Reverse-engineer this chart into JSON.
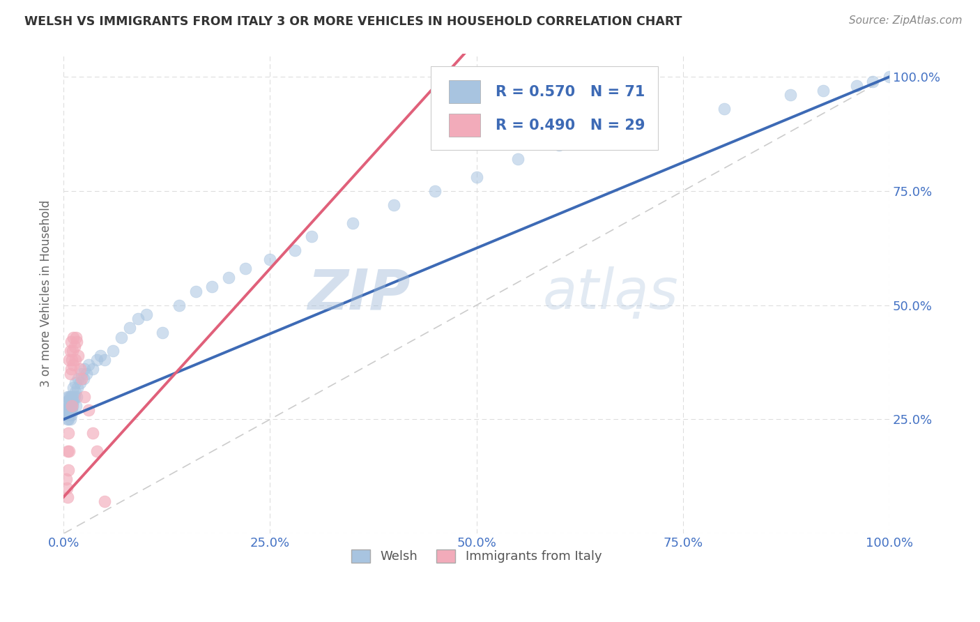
{
  "title": "WELSH VS IMMIGRANTS FROM ITALY 3 OR MORE VEHICLES IN HOUSEHOLD CORRELATION CHART",
  "source": "Source: ZipAtlas.com",
  "ylabel": "3 or more Vehicles in Household",
  "xlim": [
    0.0,
    1.0
  ],
  "ylim": [
    0.0,
    1.05
  ],
  "xticklabels": [
    "0.0%",
    "25.0%",
    "50.0%",
    "75.0%",
    "100.0%"
  ],
  "yticklabels": [
    "",
    "25.0%",
    "50.0%",
    "75.0%",
    "100.0%"
  ],
  "welsh_color": "#A8C4E0",
  "italy_color": "#F2ABBA",
  "welsh_line_color": "#3D6AB5",
  "italy_line_color": "#E0607A",
  "ref_line_color": "#CCCCCC",
  "welsh_R": 0.57,
  "welsh_N": 71,
  "italy_R": 0.49,
  "italy_N": 29,
  "watermark": "ZIPAtlas",
  "watermark_color": "#C8D8EC",
  "legend_label_welsh": "Welsh",
  "legend_label_italy": "Immigrants from Italy",
  "welsh_x": [
    0.003,
    0.004,
    0.004,
    0.005,
    0.005,
    0.005,
    0.005,
    0.006,
    0.006,
    0.006,
    0.007,
    0.007,
    0.007,
    0.008,
    0.008,
    0.008,
    0.008,
    0.009,
    0.009,
    0.009,
    0.01,
    0.01,
    0.011,
    0.011,
    0.012,
    0.012,
    0.013,
    0.014,
    0.014,
    0.015,
    0.016,
    0.017,
    0.018,
    0.02,
    0.022,
    0.024,
    0.025,
    0.028,
    0.03,
    0.035,
    0.04,
    0.045,
    0.05,
    0.06,
    0.07,
    0.08,
    0.09,
    0.1,
    0.12,
    0.14,
    0.16,
    0.18,
    0.2,
    0.22,
    0.25,
    0.28,
    0.3,
    0.35,
    0.4,
    0.45,
    0.5,
    0.55,
    0.6,
    0.65,
    0.7,
    0.8,
    0.88,
    0.92,
    0.96,
    0.98,
    1.0
  ],
  "welsh_y": [
    0.27,
    0.26,
    0.28,
    0.25,
    0.27,
    0.29,
    0.3,
    0.25,
    0.27,
    0.29,
    0.26,
    0.28,
    0.3,
    0.25,
    0.27,
    0.28,
    0.3,
    0.26,
    0.28,
    0.3,
    0.27,
    0.29,
    0.28,
    0.3,
    0.29,
    0.32,
    0.3,
    0.31,
    0.33,
    0.28,
    0.3,
    0.32,
    0.34,
    0.33,
    0.35,
    0.34,
    0.36,
    0.35,
    0.37,
    0.36,
    0.38,
    0.39,
    0.38,
    0.4,
    0.43,
    0.45,
    0.47,
    0.48,
    0.44,
    0.5,
    0.53,
    0.54,
    0.56,
    0.58,
    0.6,
    0.62,
    0.65,
    0.68,
    0.72,
    0.75,
    0.78,
    0.82,
    0.85,
    0.88,
    0.9,
    0.93,
    0.96,
    0.97,
    0.98,
    0.99,
    1.0
  ],
  "italy_x": [
    0.003,
    0.004,
    0.005,
    0.005,
    0.006,
    0.006,
    0.007,
    0.007,
    0.008,
    0.008,
    0.009,
    0.009,
    0.01,
    0.01,
    0.011,
    0.012,
    0.012,
    0.013,
    0.014,
    0.015,
    0.016,
    0.018,
    0.02,
    0.022,
    0.025,
    0.03,
    0.035,
    0.04,
    0.05
  ],
  "italy_y": [
    0.12,
    0.1,
    0.08,
    0.18,
    0.14,
    0.22,
    0.18,
    0.38,
    0.35,
    0.4,
    0.36,
    0.42,
    0.28,
    0.38,
    0.4,
    0.37,
    0.43,
    0.41,
    0.38,
    0.43,
    0.42,
    0.39,
    0.36,
    0.34,
    0.3,
    0.27,
    0.22,
    0.18,
    0.07
  ],
  "welsh_line_x": [
    0.0,
    1.0
  ],
  "welsh_line_y": [
    0.25,
    1.0
  ],
  "italy_line_x": [
    0.0,
    0.2
  ],
  "italy_line_y": [
    0.08,
    0.48
  ]
}
